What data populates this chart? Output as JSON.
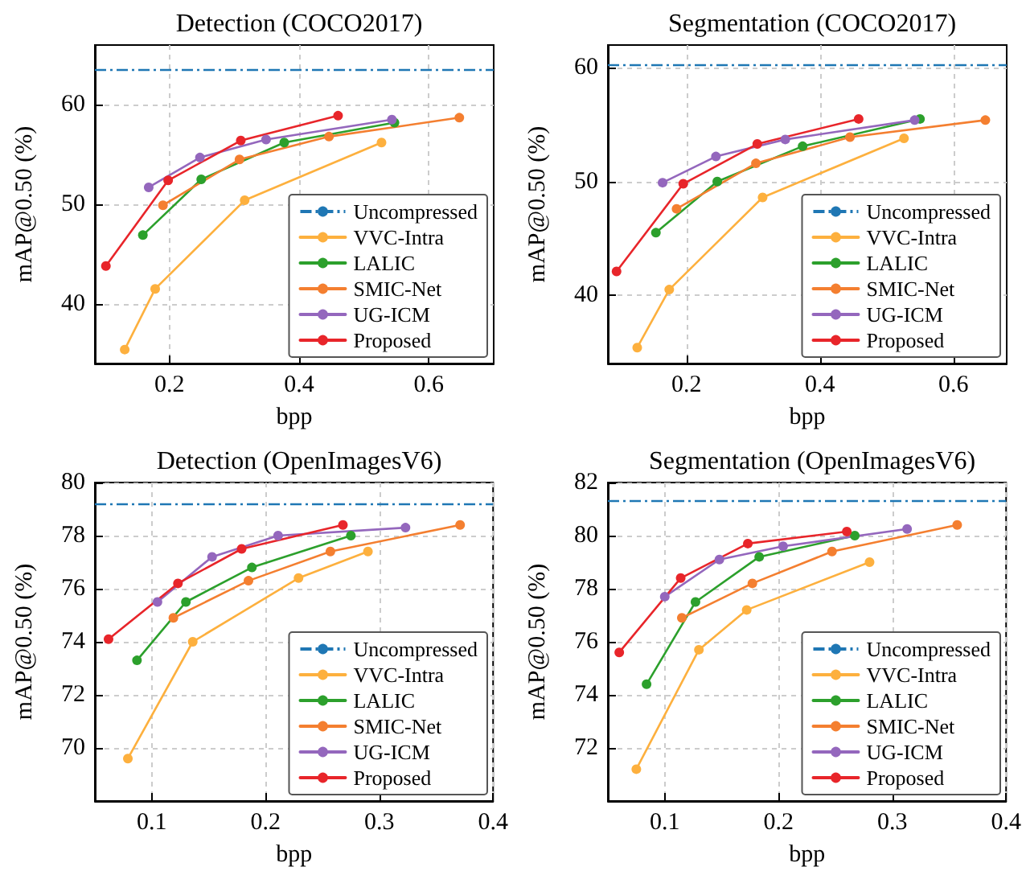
{
  "chart_data": [
    {
      "type": "line",
      "title": "Detection (COCO2017)",
      "xlabel": "bpp",
      "ylabel": "mAP@0.50 (%)",
      "xlim": [
        0.085,
        0.7
      ],
      "xticks": [
        0.2,
        0.4,
        0.6
      ],
      "ylim": [
        34,
        66
      ],
      "yticks": [
        40,
        50,
        60
      ],
      "grid": true,
      "legend": "bottom right",
      "marker": "circle",
      "line_style": "solid",
      "ref_lines": [
        {
          "axis": "y",
          "value": 63.6,
          "label": "Uncompressed",
          "color": "#1f77b4",
          "line_style": "dashdot"
        }
      ],
      "series": [
        {
          "name": "VVC-Intra",
          "color": "#fdb03e",
          "x": [
            0.131,
            0.178,
            0.316,
            0.527
          ],
          "values": [
            35.4,
            41.5,
            50.4,
            56.2
          ]
        },
        {
          "name": "LALIC",
          "color": "#2ca02c",
          "x": [
            0.159,
            0.249,
            0.377,
            0.547
          ],
          "values": [
            46.9,
            52.5,
            56.2,
            58.2
          ]
        },
        {
          "name": "SMIC-Net",
          "color": "#f47f30",
          "x": [
            0.19,
            0.308,
            0.446,
            0.647
          ],
          "values": [
            49.9,
            54.5,
            56.8,
            58.7
          ]
        },
        {
          "name": "UG-ICM",
          "color": "#9467bd",
          "x": [
            0.168,
            0.247,
            0.349,
            0.543
          ],
          "values": [
            51.7,
            54.7,
            56.5,
            58.5
          ]
        },
        {
          "name": "Proposed",
          "color": "#e8252a",
          "x": [
            0.102,
            0.198,
            0.31,
            0.46
          ],
          "values": [
            43.8,
            52.4,
            56.4,
            58.9
          ]
        }
      ]
    },
    {
      "type": "line",
      "title": "Segmentation (COCO2017)",
      "xlabel": "bpp",
      "ylabel": "mAP@0.50 (%)",
      "xlim": [
        0.082,
        0.68
      ],
      "xticks": [
        0.2,
        0.4,
        0.6
      ],
      "ylim": [
        34,
        62
      ],
      "yticks": [
        40,
        50,
        60
      ],
      "grid": true,
      "legend": "bottom right",
      "marker": "circle",
      "line_style": "solid",
      "ref_lines": [
        {
          "axis": "y",
          "value": 60.2,
          "label": "Uncompressed",
          "color": "#1f77b4",
          "line_style": "dashdot"
        }
      ],
      "series": [
        {
          "name": "VVC-Intra",
          "color": "#fdb03e",
          "x": [
            0.126,
            0.174,
            0.314,
            0.526
          ],
          "values": [
            35.4,
            40.5,
            48.6,
            53.8
          ]
        },
        {
          "name": "LALIC",
          "color": "#2ca02c",
          "x": [
            0.154,
            0.246,
            0.374,
            0.55
          ],
          "values": [
            45.5,
            50.0,
            53.1,
            55.5
          ]
        },
        {
          "name": "SMIC-Net",
          "color": "#f47f30",
          "x": [
            0.185,
            0.304,
            0.445,
            0.648
          ],
          "values": [
            47.6,
            51.6,
            53.9,
            55.4
          ]
        },
        {
          "name": "UG-ICM",
          "color": "#9467bd",
          "x": [
            0.164,
            0.244,
            0.348,
            0.542
          ],
          "values": [
            49.9,
            52.2,
            53.7,
            55.4
          ]
        },
        {
          "name": "Proposed",
          "color": "#e8252a",
          "x": [
            0.095,
            0.195,
            0.306,
            0.458
          ],
          "values": [
            42.1,
            49.8,
            53.3,
            55.5
          ]
        }
      ]
    },
    {
      "type": "line",
      "title": "Detection (OpenImagesV6)",
      "xlabel": "bpp",
      "ylabel": "mAP@0.50 (%)",
      "xlim": [
        0.05,
        0.4
      ],
      "xticks": [
        0.1,
        0.2,
        0.3,
        0.4
      ],
      "ylim": [
        68,
        80
      ],
      "yticks": [
        70,
        72,
        74,
        76,
        78,
        80
      ],
      "grid": true,
      "legend": "bottom right",
      "marker": "circle",
      "line_style": "solid",
      "ref_lines": [
        {
          "axis": "y",
          "value": 79.2,
          "label": "Uncompressed",
          "color": "#1f77b4",
          "line_style": "dashdot"
        }
      ],
      "series": [
        {
          "name": "VVC-Intra",
          "color": "#fdb03e",
          "x": [
            0.079,
            0.136,
            0.229,
            0.29
          ],
          "values": [
            69.6,
            74.0,
            76.4,
            77.4
          ]
        },
        {
          "name": "LALIC",
          "color": "#2ca02c",
          "x": [
            0.087,
            0.13,
            0.188,
            0.275
          ],
          "values": [
            73.3,
            75.5,
            76.8,
            78.0
          ]
        },
        {
          "name": "SMIC-Net",
          "color": "#f47f30",
          "x": [
            0.119,
            0.185,
            0.257,
            0.371
          ],
          "values": [
            74.9,
            76.3,
            77.4,
            78.4
          ]
        },
        {
          "name": "UG-ICM",
          "color": "#9467bd",
          "x": [
            0.105,
            0.153,
            0.211,
            0.323
          ],
          "values": [
            75.5,
            77.2,
            78.0,
            78.3
          ]
        },
        {
          "name": "Proposed",
          "color": "#e8252a",
          "x": [
            0.062,
            0.123,
            0.179,
            0.268
          ],
          "values": [
            74.1,
            76.2,
            77.5,
            78.4
          ]
        }
      ]
    },
    {
      "type": "line",
      "title": "Segmentation (OpenImagesV6)",
      "xlabel": "bpp",
      "ylabel": "mAP@0.50 (%)",
      "xlim": [
        0.05,
        0.4
      ],
      "xticks": [
        0.1,
        0.2,
        0.3,
        0.4
      ],
      "ylim": [
        70,
        82
      ],
      "yticks": [
        72,
        74,
        76,
        78,
        80,
        82
      ],
      "grid": true,
      "legend": "bottom right",
      "marker": "circle",
      "line_style": "solid",
      "ref_lines": [
        {
          "axis": "y",
          "value": 81.3,
          "label": "Uncompressed",
          "color": "#1f77b4",
          "line_style": "dashdot"
        }
      ],
      "series": [
        {
          "name": "VVC-Intra",
          "color": "#fdb03e",
          "x": [
            0.075,
            0.13,
            0.172,
            0.28
          ],
          "values": [
            71.2,
            75.7,
            77.2,
            79.0
          ]
        },
        {
          "name": "LALIC",
          "color": "#2ca02c",
          "x": [
            0.084,
            0.127,
            0.183,
            0.267
          ],
          "values": [
            74.4,
            77.5,
            79.2,
            80.0
          ]
        },
        {
          "name": "SMIC-Net",
          "color": "#f47f30",
          "x": [
            0.115,
            0.177,
            0.247,
            0.357
          ],
          "values": [
            76.9,
            78.2,
            79.4,
            80.4
          ]
        },
        {
          "name": "UG-ICM",
          "color": "#9467bd",
          "x": [
            0.1,
            0.148,
            0.204,
            0.313
          ],
          "values": [
            77.7,
            79.1,
            79.6,
            80.25
          ]
        },
        {
          "name": "Proposed",
          "color": "#e8252a",
          "x": [
            0.06,
            0.114,
            0.173,
            0.26
          ],
          "values": [
            75.6,
            78.4,
            79.7,
            80.15
          ]
        }
      ]
    }
  ]
}
